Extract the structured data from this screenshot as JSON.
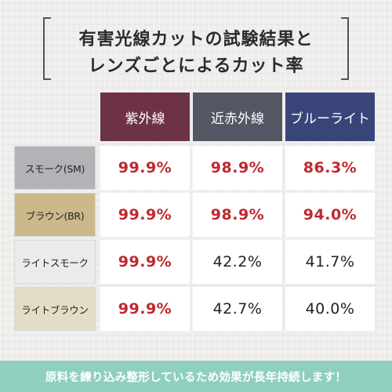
{
  "title": {
    "line1": "有害光線カットの試験結果と",
    "line2": "レンズごとによるカット率"
  },
  "table": {
    "columns": [
      {
        "label": "紫外線",
        "color": "#6e3246"
      },
      {
        "label": "近赤外線",
        "color": "#525763"
      },
      {
        "label": "ブルーライト",
        "color": "#394579"
      }
    ],
    "rows": [
      {
        "label": "スモーク(SM)",
        "color": "#b2b3b6",
        "values": [
          "99.9%",
          "98.9%",
          "86.3%"
        ],
        "highlight": [
          true,
          true,
          true
        ]
      },
      {
        "label": "ブラウン(BR)",
        "color": "#cbb88b",
        "values": [
          "99.9%",
          "98.9%",
          "94.0%"
        ],
        "highlight": [
          true,
          true,
          true
        ]
      },
      {
        "label": "ライトスモーク",
        "color": "#ebebec",
        "values": [
          "99.9%",
          "42.2%",
          "41.7%"
        ],
        "highlight": [
          true,
          false,
          false
        ]
      },
      {
        "label": "ライトブラウン",
        "color": "#e3dcc6",
        "values": [
          "99.9%",
          "42.7%",
          "40.0%"
        ],
        "highlight": [
          true,
          false,
          false
        ]
      }
    ]
  },
  "banner": {
    "text": "原料を練り込み整形しているため効果が長年持続します！"
  }
}
